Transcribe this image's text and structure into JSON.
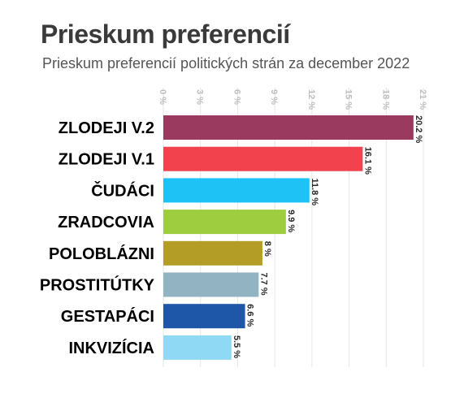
{
  "chart_data": {
    "type": "bar",
    "orientation": "horizontal",
    "title": "Prieskum preferencií",
    "subtitle": "Prieskum preferencií politických strán za december 2022",
    "categories": [
      "ZLODEJI V.2",
      "ZLODEJI V.1",
      "ČUDÁCI",
      "ZRADCOVIA",
      "POLOBLÁZNI",
      "PROSTITÚTKY",
      "GESTAPÁCI",
      "INKVIZÍCIA"
    ],
    "values": [
      20.2,
      16.1,
      11.8,
      9.9,
      8,
      7.7,
      6.6,
      5.5
    ],
    "value_labels": [
      "20.2 %",
      "16.1 %",
      "11.8 %",
      "9.9 %",
      "8 %",
      "7.7 %",
      "6.6 %",
      "5.5 %"
    ],
    "colors": [
      "#9a3a5e",
      "#f2424d",
      "#1ec2f5",
      "#9ecd3f",
      "#b39d26",
      "#92b3c2",
      "#1f57a8",
      "#8fd9f4"
    ],
    "xlim": [
      0,
      21
    ],
    "ticks": [
      0,
      3,
      6,
      9,
      12,
      15,
      18,
      21
    ],
    "tick_labels": [
      "0 %",
      "3 %",
      "6 %",
      "9 %",
      "12 %",
      "15 %",
      "18 %",
      "21 %"
    ],
    "grid": true,
    "xlabel": "",
    "ylabel": ""
  }
}
